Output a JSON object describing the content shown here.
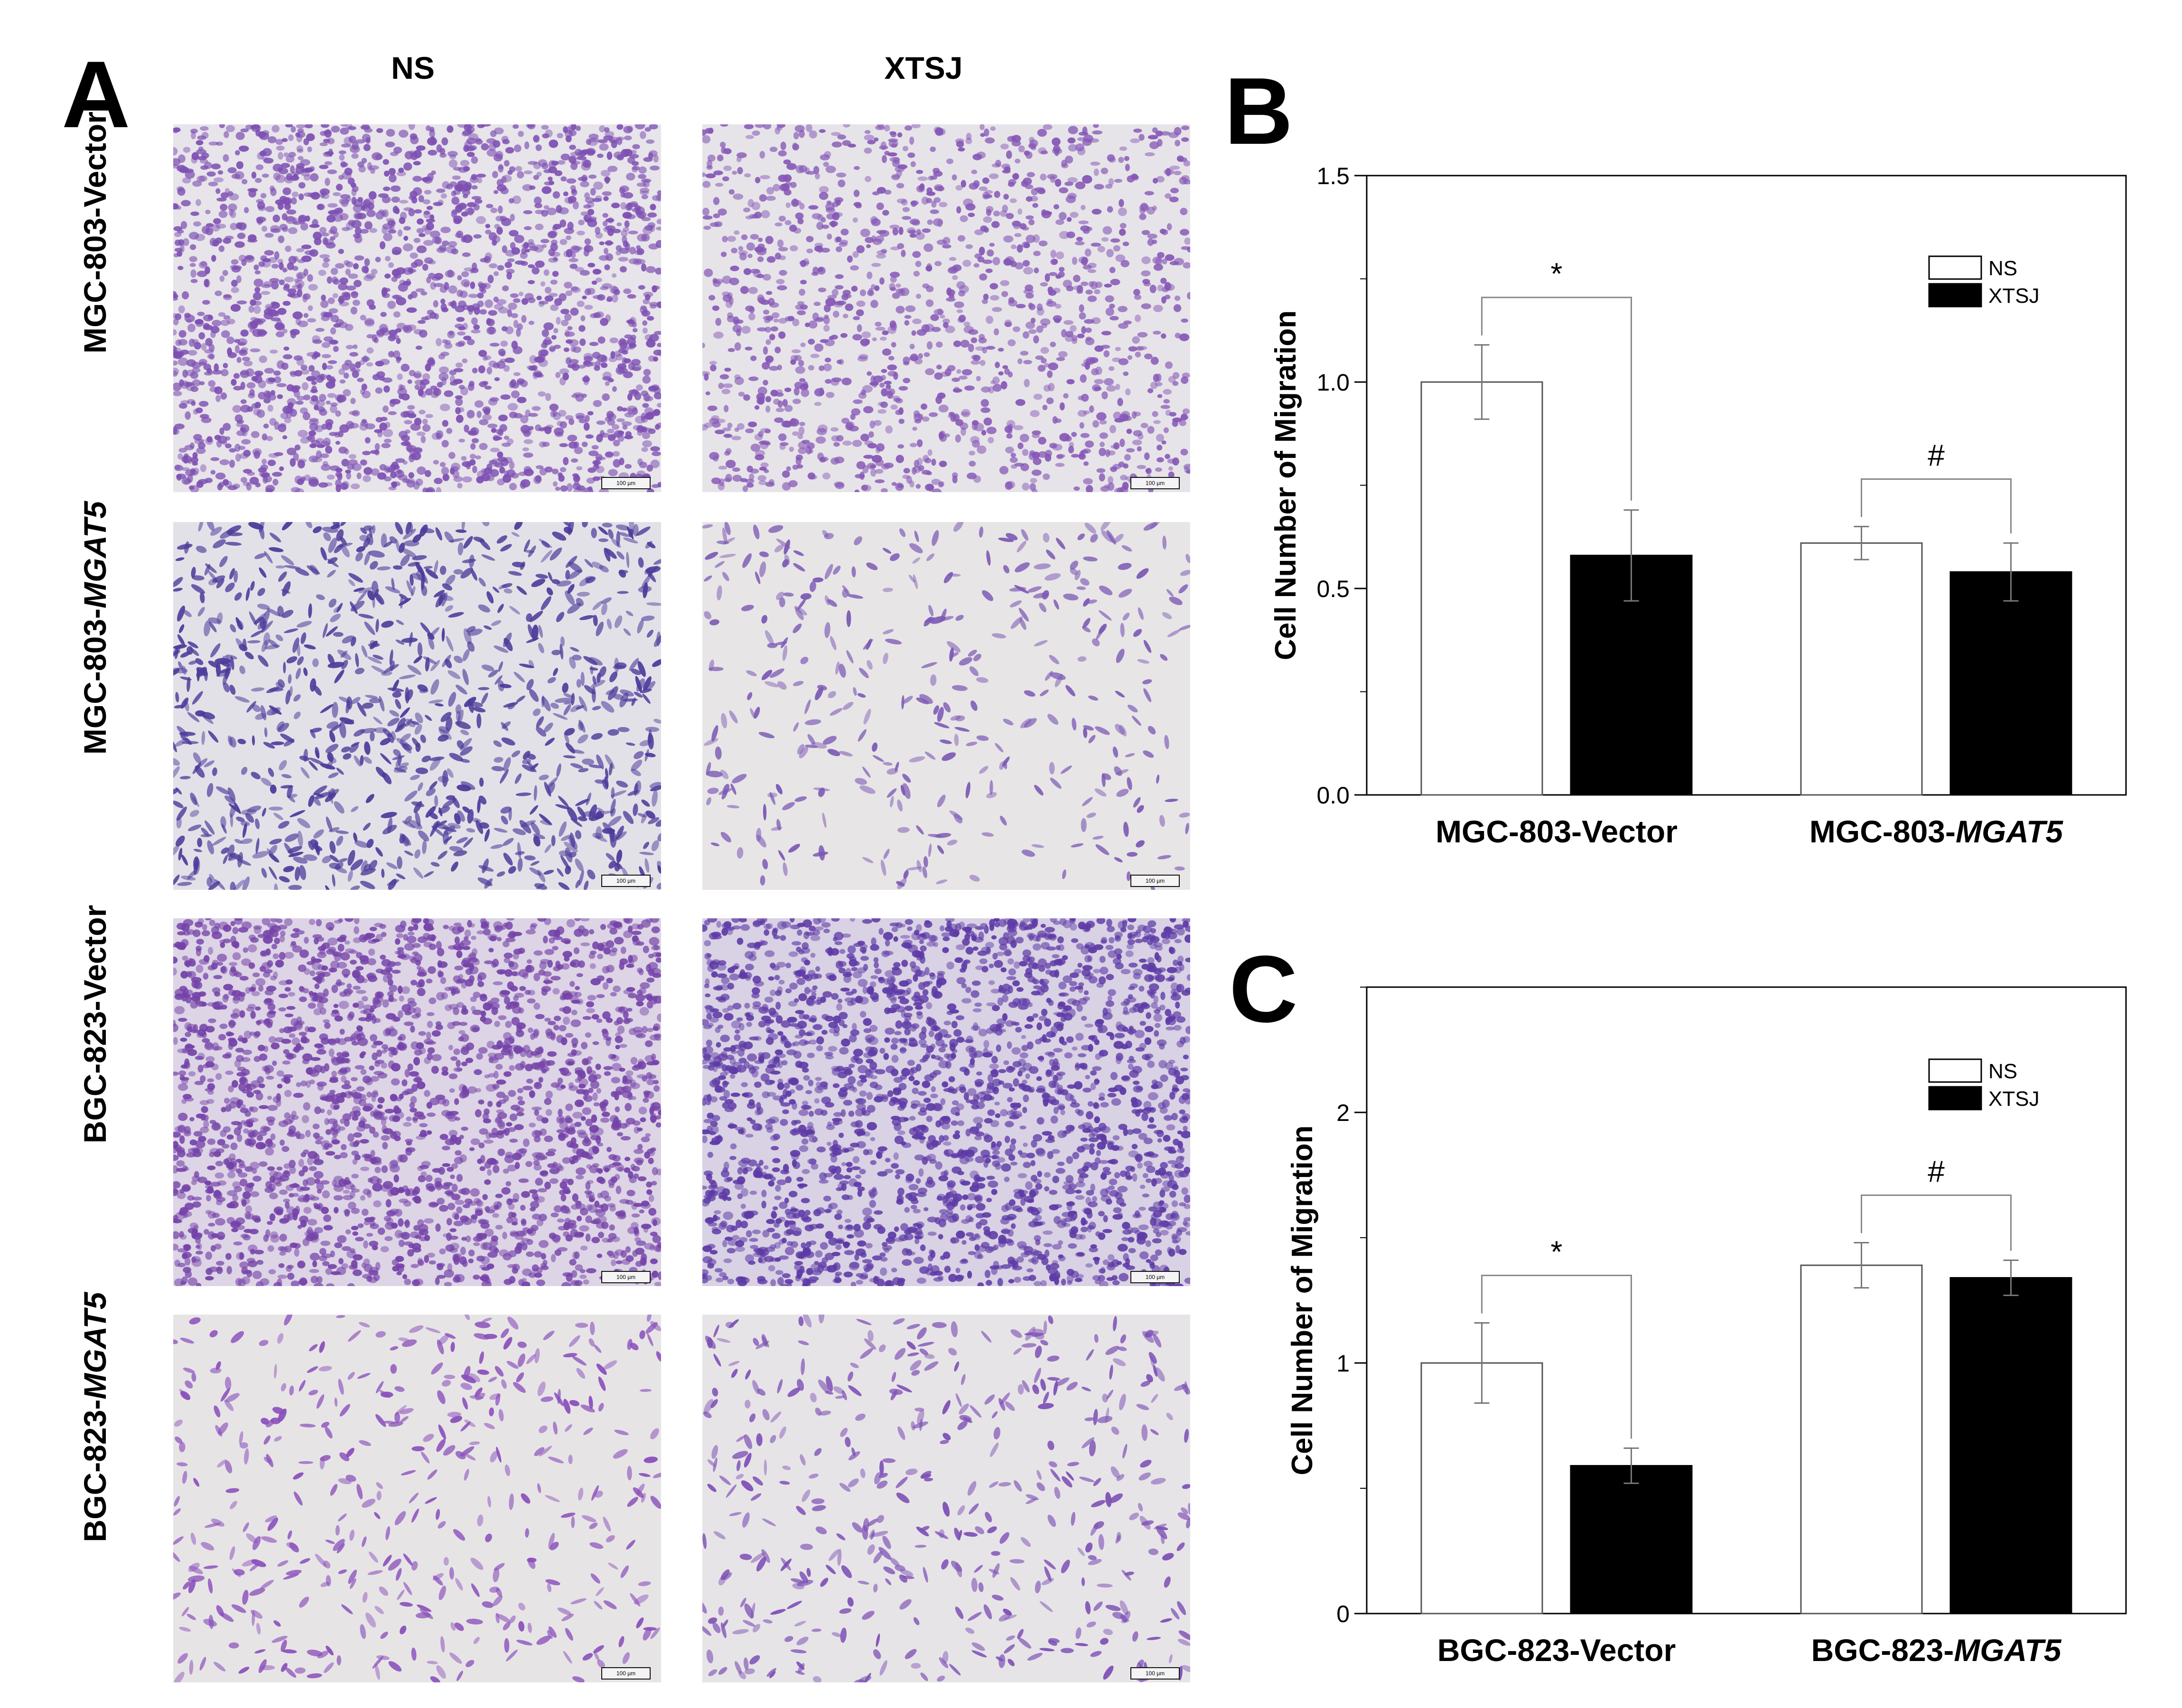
{
  "panel_a": {
    "letter": "A",
    "columns": [
      "NS",
      "XTSJ"
    ],
    "rows": [
      {
        "prefix": "MGC-803-",
        "suffix": "Vector",
        "italic": false
      },
      {
        "prefix": "MGC-803-",
        "suffix": "MGAT5",
        "italic": true
      },
      {
        "prefix": "BGC-823-",
        "suffix": "Vector",
        "italic": false
      },
      {
        "prefix": "BGC-823-",
        "suffix": "MGAT5",
        "italic": true
      }
    ],
    "scale_bar": "100 µm",
    "images": [
      {
        "name": "mgc803-vector-ns",
        "bg": "#e7e4ea",
        "cell": "#7d4fb2",
        "density": 0.85,
        "shape": "round"
      },
      {
        "name": "mgc803-vector-xtsj",
        "bg": "#e6e4e8",
        "cell": "#8556b6",
        "density": 0.55,
        "shape": "round"
      },
      {
        "name": "mgc803-mgat5-ns",
        "bg": "#e3e1e8",
        "cell": "#4d3a9a",
        "density": 0.7,
        "shape": "spindle"
      },
      {
        "name": "mgc803-mgat5-xtsj",
        "bg": "#e8e5e6",
        "cell": "#7b59b4",
        "density": 0.25,
        "shape": "spindle"
      },
      {
        "name": "bgc823-vector-ns",
        "bg": "#ddd4e6",
        "cell": "#7442a8",
        "density": 0.95,
        "shape": "round"
      },
      {
        "name": "bgc823-vector-xtsj",
        "bg": "#d9d1e4",
        "cell": "#5d3aa6",
        "density": 0.95,
        "shape": "round"
      },
      {
        "name": "bgc823-mgat5-ns",
        "bg": "#e7e4e6",
        "cell": "#8a4fbb",
        "density": 0.28,
        "shape": "spindle"
      },
      {
        "name": "bgc823-mgat5-xtsj",
        "bg": "#e7e4e7",
        "cell": "#7d50b5",
        "density": 0.3,
        "shape": "spindle"
      }
    ]
  },
  "chart_data": [
    {
      "panel_letter": "B",
      "type": "bar",
      "ylabel": "Cell Number of Migration",
      "xlabel": "",
      "ylim": [
        0,
        1.5
      ],
      "yticks": [
        0.0,
        0.5,
        1.0,
        1.5
      ],
      "ytick_labels": [
        "0.0",
        "0.5",
        "1.0",
        "1.5"
      ],
      "categories": [
        {
          "prefix": "MGC-803-",
          "suffix": "Vector",
          "italic": false
        },
        {
          "prefix": "MGC-803-",
          "suffix": "MGAT5",
          "italic": true
        }
      ],
      "series": [
        {
          "name": "NS",
          "color": "#ffffff",
          "values": [
            1.0,
            0.61
          ],
          "errors": [
            0.09,
            0.04
          ]
        },
        {
          "name": "XTSJ",
          "color": "#000000",
          "values": [
            0.58,
            0.54
          ],
          "errors": [
            0.11,
            0.07
          ]
        }
      ],
      "annotations": [
        "*",
        "#"
      ],
      "legend": "top-right"
    },
    {
      "panel_letter": "C",
      "type": "bar",
      "ylabel": "Cell Number of Migration",
      "xlabel": "",
      "ylim": [
        0,
        2.5
      ],
      "yticks": [
        0,
        1,
        2
      ],
      "ytick_labels": [
        "0",
        "1",
        "2"
      ],
      "categories": [
        {
          "prefix": "BGC-823-",
          "suffix": "Vector",
          "italic": false
        },
        {
          "prefix": "BGC-823-",
          "suffix": "MGAT5",
          "italic": true
        }
      ],
      "series": [
        {
          "name": "NS",
          "color": "#ffffff",
          "values": [
            1.0,
            1.39
          ],
          "errors": [
            0.16,
            0.09
          ]
        },
        {
          "name": "XTSJ",
          "color": "#000000",
          "values": [
            0.59,
            1.34
          ],
          "errors": [
            0.07,
            0.07
          ]
        }
      ],
      "annotations": [
        "*",
        "#"
      ],
      "legend": "top-right"
    }
  ]
}
